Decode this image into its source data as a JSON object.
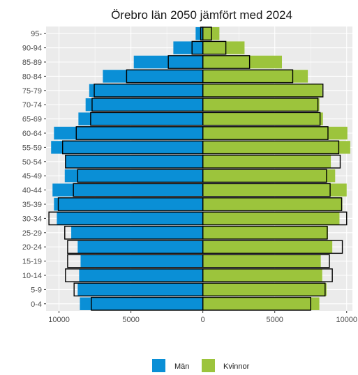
{
  "chart_data": {
    "type": "bar",
    "orientation": "horizontal",
    "layout": "population-pyramid",
    "title": "Örebro län 2050 jämfört med 2024",
    "categories": [
      "95-",
      "90-94",
      "85-89",
      "80-84",
      "75-79",
      "70-74",
      "65-69",
      "60-64",
      "55-59",
      "50-54",
      "45-49",
      "40-44",
      "35-39",
      "30-34",
      "25-29",
      "20-24",
      "15-19",
      "10-14",
      "5-9",
      "0-4"
    ],
    "series": [
      {
        "name": "Män",
        "role": "2050 projection (filled bars)",
        "values": [
          500,
          2050,
          4800,
          6950,
          7900,
          8150,
          8650,
          10350,
          10550,
          9550,
          9600,
          10450,
          10350,
          10150,
          9150,
          8700,
          8500,
          8600,
          8700,
          8550
        ]
      },
      {
        "name": "Kvinnor",
        "role": "2050 projection (filled bars)",
        "values": [
          1150,
          2900,
          5500,
          7300,
          8300,
          8100,
          8350,
          10050,
          10250,
          8900,
          9200,
          10000,
          9700,
          9500,
          8700,
          9000,
          8200,
          8300,
          8600,
          8100
        ]
      },
      {
        "name": "Män",
        "role": "2024 (black outlines)",
        "values": [
          150,
          750,
          2400,
          5300,
          7550,
          7700,
          7800,
          8800,
          9750,
          9550,
          8700,
          9000,
          10050,
          10700,
          9600,
          9400,
          9400,
          9550,
          8950,
          7750
        ]
      },
      {
        "name": "Kvinnor",
        "role": "2024 (black outlines)",
        "values": [
          600,
          1600,
          3250,
          6250,
          8350,
          8000,
          8150,
          8700,
          9450,
          9550,
          8600,
          8850,
          9650,
          10000,
          8650,
          9700,
          8800,
          9000,
          8500,
          7500
        ]
      }
    ],
    "x_ticks": [
      "10000",
      "5000",
      "0",
      "5000",
      "10000"
    ],
    "x_tick_values": [
      -10000,
      -5000,
      0,
      5000,
      10000
    ],
    "xlim": [
      -10900,
      10400
    ],
    "grid": true,
    "legend_position": "bottom",
    "legend": [
      {
        "label": "Män",
        "color": "#0a8fd6"
      },
      {
        "label": "Kvinnor",
        "color": "#9cc43c"
      }
    ],
    "colors": {
      "men": "#0a8fd6",
      "women": "#9cc43c",
      "outline": "#000000",
      "panel": "#ebebeb",
      "grid_major": "#ffffff"
    }
  }
}
